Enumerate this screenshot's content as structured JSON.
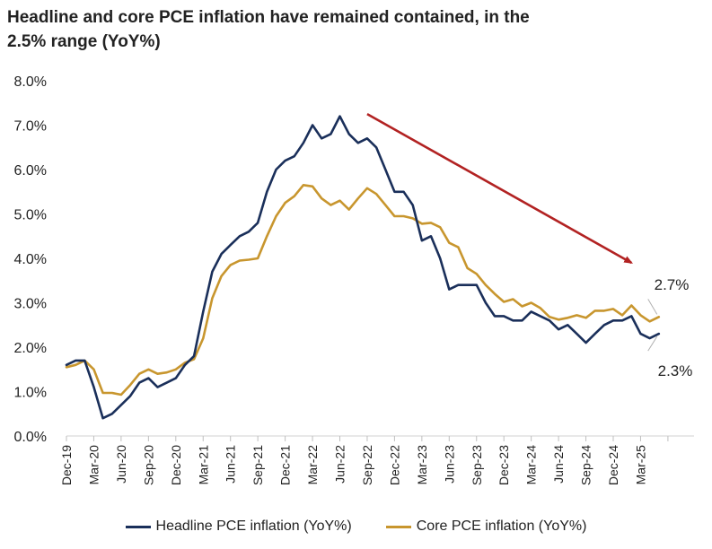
{
  "chart_data": {
    "type": "line",
    "title": "Headline and core PCE inflation have remained contained, in the 2.5% range (YoY%)",
    "ylim": [
      0,
      8
    ],
    "yticks": [
      "0.0%",
      "1.0%",
      "2.0%",
      "3.0%",
      "4.0%",
      "5.0%",
      "6.0%",
      "7.0%",
      "8.0%"
    ],
    "x_tick_labels": [
      "Dec-19",
      "Mar-20",
      "Jun-20",
      "Sep-20",
      "Dec-20",
      "Mar-21",
      "Jun-21",
      "Sep-21",
      "Dec-21",
      "Mar-22",
      "Jun-22",
      "Sep-22",
      "Dec-22",
      "Mar-23",
      "Jun-23",
      "Sep-23",
      "Dec-23",
      "Mar-24",
      "Jun-24",
      "Sep-24",
      "Dec-24",
      "Mar-25"
    ],
    "x_start": "Dec-19",
    "grid": false,
    "legend_position": "bottom",
    "series": [
      {
        "name": "Headline PCE inflation (YoY%)",
        "color": "#1a2f5a",
        "values": [
          1.6,
          1.7,
          1.7,
          1.1,
          0.4,
          0.5,
          0.7,
          0.9,
          1.2,
          1.3,
          1.1,
          1.2,
          1.3,
          1.6,
          1.8,
          2.8,
          3.7,
          4.1,
          4.3,
          4.5,
          4.6,
          4.8,
          5.5,
          6.0,
          6.2,
          6.3,
          6.6,
          7.0,
          6.7,
          6.8,
          7.2,
          6.8,
          6.6,
          6.7,
          6.5,
          6.0,
          5.5,
          5.5,
          5.2,
          4.4,
          4.5,
          4.0,
          3.3,
          3.4,
          3.4,
          3.4,
          3.0,
          2.7,
          2.7,
          2.6,
          2.6,
          2.8,
          2.7,
          2.6,
          2.4,
          2.5,
          2.3,
          2.1,
          2.3,
          2.5,
          2.6,
          2.6,
          2.7,
          2.3,
          2.2,
          2.3
        ]
      },
      {
        "name": "Core PCE inflation (YoY%)",
        "color": "#c8962e",
        "values": [
          1.55,
          1.6,
          1.7,
          1.5,
          0.97,
          0.97,
          0.93,
          1.15,
          1.4,
          1.5,
          1.4,
          1.43,
          1.5,
          1.65,
          1.73,
          2.2,
          3.1,
          3.6,
          3.85,
          3.95,
          3.97,
          4.0,
          4.5,
          4.95,
          5.25,
          5.4,
          5.65,
          5.62,
          5.35,
          5.2,
          5.3,
          5.1,
          5.35,
          5.58,
          5.45,
          5.2,
          4.95,
          4.95,
          4.9,
          4.78,
          4.8,
          4.7,
          4.35,
          4.25,
          3.78,
          3.65,
          3.4,
          3.2,
          3.02,
          3.08,
          2.92,
          3.0,
          2.88,
          2.68,
          2.62,
          2.66,
          2.72,
          2.66,
          2.82,
          2.82,
          2.86,
          2.72,
          2.94,
          2.72,
          2.58,
          2.68
        ]
      }
    ],
    "annotations": [
      {
        "text": "2.7%",
        "series": 1,
        "index": 65
      },
      {
        "text": "2.3%",
        "series": 0,
        "index": 65
      }
    ],
    "trend_arrow": {
      "from_index": 33,
      "from_value": 7.25,
      "to_index": 62,
      "to_value": 3.9,
      "color": "#b22222"
    }
  }
}
